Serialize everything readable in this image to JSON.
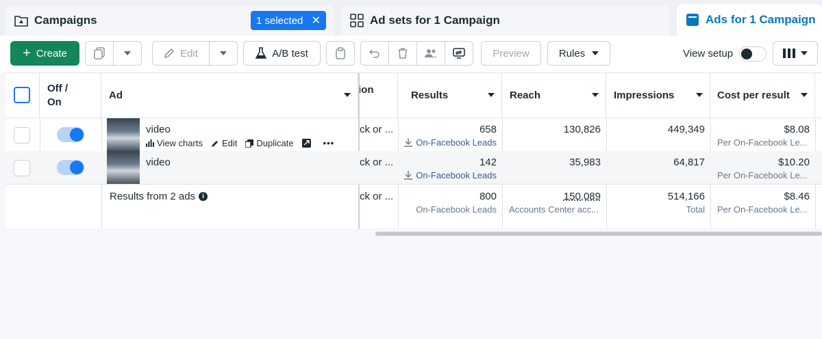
{
  "tabs": {
    "campaigns": "Campaigns",
    "selected_chip": "1 selected",
    "adsets": "Ad sets for 1 Campaign",
    "ads": "Ads for 1 Campaign"
  },
  "toolbar": {
    "create": "Create",
    "edit": "Edit",
    "ab_test": "A/B test",
    "preview": "Preview",
    "rules": "Rules",
    "view_setup": "View setup"
  },
  "columns": {
    "off_on": "Off / On",
    "ad": "Ad",
    "partial": "ion",
    "results": "Results",
    "reach": "Reach",
    "impressions": "Impressions",
    "cost_per_result": "Cost per result"
  },
  "rows": [
    {
      "name": "video",
      "partial": "ck or ...",
      "results": "658",
      "results_sub": "On-Facebook Leads",
      "reach": "130,826",
      "impressions": "449,349",
      "cost": "$8.08",
      "cost_sub": "Per On-Facebook Le...",
      "actions": {
        "view_charts": "View charts",
        "edit": "Edit",
        "duplicate": "Duplicate"
      }
    },
    {
      "name": "video",
      "partial": "ck or ...",
      "results": "142",
      "results_sub": "On-Facebook Leads",
      "reach": "35,983",
      "impressions": "64,817",
      "cost": "$10.20",
      "cost_sub": "Per On-Facebook Le..."
    }
  ],
  "summary": {
    "label": "Results from 2 ads",
    "partial": "ck or ...",
    "results": "800",
    "results_sub": "On-Facebook Leads",
    "reach": "150,089",
    "reach_sub": "Accounts Center acc...",
    "impressions": "514,166",
    "impressions_sub": "Total",
    "cost": "$8.46",
    "cost_sub": "Per On-Facebook Le..."
  }
}
